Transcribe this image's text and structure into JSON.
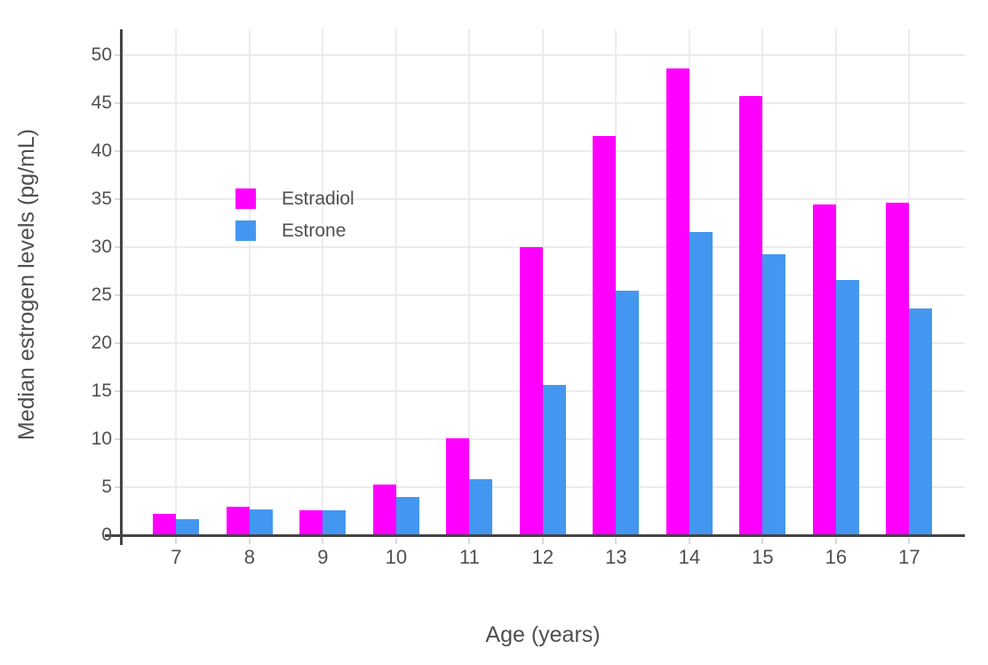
{
  "chart_data": {
    "type": "bar",
    "title": "",
    "xlabel": "Age (years)",
    "ylabel": "Median estrogen levels (pg/mL)",
    "categories": [
      "7",
      "8",
      "9",
      "10",
      "11",
      "12",
      "13",
      "14",
      "15",
      "16",
      "17"
    ],
    "series": [
      {
        "name": "Estradiol",
        "color": "#FF00FF",
        "values": [
          2.2,
          3.0,
          2.6,
          5.3,
          10.1,
          30.0,
          41.6,
          48.6,
          45.8,
          34.5,
          34.6
        ]
      },
      {
        "name": "Estrone",
        "color": "#4497F0",
        "values": [
          1.7,
          2.7,
          2.6,
          4.0,
          5.8,
          15.7,
          25.5,
          31.6,
          29.3,
          26.6,
          23.6
        ]
      }
    ],
    "yticks": [
      0,
      5,
      10,
      15,
      20,
      25,
      30,
      35,
      40,
      45,
      50
    ],
    "ylim": [
      0,
      52.7
    ],
    "grid": true,
    "legend_position": "inside-top-left",
    "colors": {
      "axis": "#444444",
      "grid": "#ECECEC",
      "tick": "#D9D9D9",
      "text": "#4F4F4F"
    }
  }
}
